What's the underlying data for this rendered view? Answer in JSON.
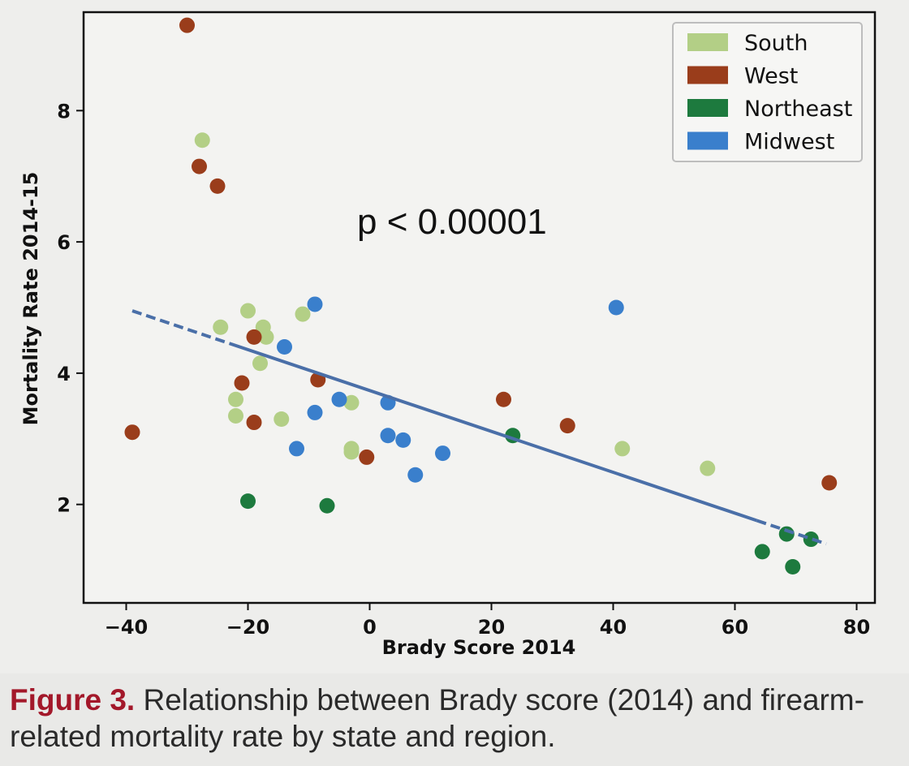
{
  "chart_data": {
    "type": "scatter",
    "xlabel": "Brady Score 2014",
    "ylabel": "Mortality Rate 2014-15",
    "xlim": [
      -47,
      83
    ],
    "ylim": [
      0.5,
      9.5
    ],
    "xticks": [
      -40,
      -20,
      0,
      20,
      40,
      60,
      80
    ],
    "yticks": [
      2,
      4,
      6,
      8
    ],
    "grid": false,
    "legend_position": "top-right",
    "annotation": "p < 0.00001",
    "trendline": {
      "x": [
        -39,
        75
      ],
      "y": [
        4.95,
        1.4
      ],
      "color": "#4a6fa8"
    },
    "series": [
      {
        "name": "South",
        "color": "#b3cf86",
        "points": [
          [
            -27.5,
            7.55
          ],
          [
            -24.5,
            4.7
          ],
          [
            -20,
            4.95
          ],
          [
            -17.5,
            4.7
          ],
          [
            -17,
            4.55
          ],
          [
            -11,
            4.9
          ],
          [
            -22,
            3.6
          ],
          [
            -22,
            3.35
          ],
          [
            -18,
            4.15
          ],
          [
            -14.5,
            3.3
          ],
          [
            -3,
            3.55
          ],
          [
            -3,
            2.85
          ],
          [
            -3,
            2.8
          ],
          [
            41.5,
            2.85
          ],
          [
            55.5,
            2.55
          ]
        ]
      },
      {
        "name": "West",
        "color": "#9a3d1b",
        "points": [
          [
            -30,
            9.3
          ],
          [
            -28,
            7.15
          ],
          [
            -25,
            6.85
          ],
          [
            -21,
            3.85
          ],
          [
            -19,
            4.55
          ],
          [
            -19,
            3.25
          ],
          [
            -8.5,
            3.9
          ],
          [
            -0.5,
            2.72
          ],
          [
            22,
            3.6
          ],
          [
            32.5,
            3.2
          ],
          [
            75.5,
            2.33
          ],
          [
            -39,
            3.1
          ]
        ]
      },
      {
        "name": "Northeast",
        "color": "#1d7a3e",
        "points": [
          [
            -20,
            2.05
          ],
          [
            -7,
            1.98
          ],
          [
            23.5,
            3.05
          ],
          [
            64.5,
            1.28
          ],
          [
            68.5,
            1.55
          ],
          [
            69.5,
            1.05
          ],
          [
            72.5,
            1.47
          ]
        ]
      },
      {
        "name": "Midwest",
        "color": "#3a7fcc",
        "points": [
          [
            -9,
            5.05
          ],
          [
            -14,
            4.4
          ],
          [
            -9,
            3.4
          ],
          [
            -5,
            3.6
          ],
          [
            -12,
            2.85
          ],
          [
            3,
            3.55
          ],
          [
            3,
            3.05
          ],
          [
            5.5,
            2.98
          ],
          [
            7.5,
            2.45
          ],
          [
            12,
            2.78
          ],
          [
            40.5,
            5.0
          ]
        ]
      }
    ]
  },
  "caption": {
    "label": "Figure 3.",
    "text": "Relationship between Brady score (2014) and firearm-related mortality rate by state and region."
  }
}
